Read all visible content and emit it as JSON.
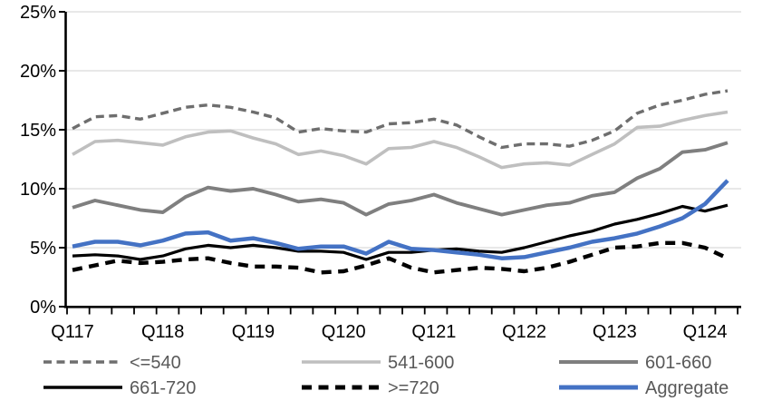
{
  "chart_data": {
    "type": "line",
    "title": "",
    "x_axis": {
      "tick_labels": [
        "Q117",
        "Q118",
        "Q119",
        "Q120",
        "Q121",
        "Q122",
        "Q123",
        "Q124"
      ],
      "categories": [
        "Q117",
        "Q217",
        "Q317",
        "Q417",
        "Q118",
        "Q218",
        "Q318",
        "Q418",
        "Q119",
        "Q219",
        "Q319",
        "Q419",
        "Q120",
        "Q220",
        "Q320",
        "Q420",
        "Q121",
        "Q221",
        "Q321",
        "Q421",
        "Q122",
        "Q222",
        "Q322",
        "Q422",
        "Q123",
        "Q223",
        "Q323",
        "Q423",
        "Q124",
        "Q224"
      ]
    },
    "y_axis": {
      "tick_labels": [
        "0%",
        "5%",
        "10%",
        "15%",
        "20%",
        "25%"
      ],
      "min": 0,
      "max": 25,
      "step": 5,
      "unit": "%"
    },
    "grid": "horizontal",
    "legend_position": "bottom",
    "colors": {
      "band_lt540": "#6e6e6e",
      "band_541_600": "#bfbfbf",
      "band_601_660": "#7f7f7f",
      "band_661_720": "#000000",
      "band_ge720": "#000000",
      "aggregate": "#4472c4",
      "gridline": "#d9d9d9",
      "axis": "#000000",
      "legend_text": "#595959"
    },
    "series": [
      {
        "name": "<=540",
        "color": "#6e6e6e",
        "line_style": "dashed",
        "values": [
          15.1,
          16.1,
          16.2,
          15.9,
          16.4,
          16.9,
          17.1,
          16.9,
          16.5,
          16.0,
          14.8,
          15.1,
          14.9,
          14.8,
          15.5,
          15.6,
          15.9,
          15.4,
          14.4,
          13.5,
          13.8,
          13.8,
          13.6,
          14.1,
          14.9,
          16.4,
          17.1,
          17.5,
          18.0,
          18.3
        ]
      },
      {
        "name": "541-600",
        "color": "#bfbfbf",
        "line_style": "solid",
        "values": [
          12.9,
          14.0,
          14.1,
          13.9,
          13.7,
          14.4,
          14.8,
          14.9,
          14.3,
          13.8,
          12.9,
          13.2,
          12.8,
          12.1,
          13.4,
          13.5,
          14.0,
          13.5,
          12.7,
          11.8,
          12.1,
          12.2,
          12.0,
          12.9,
          13.8,
          15.2,
          15.3,
          15.8,
          16.2,
          16.5
        ]
      },
      {
        "name": "601-660",
        "color": "#7f7f7f",
        "line_style": "solid",
        "values": [
          8.4,
          9.0,
          8.6,
          8.2,
          8.0,
          9.3,
          10.1,
          9.8,
          10.0,
          9.5,
          8.9,
          9.1,
          8.8,
          7.8,
          8.7,
          9.0,
          9.5,
          8.8,
          8.3,
          7.8,
          8.2,
          8.6,
          8.8,
          9.4,
          9.7,
          10.9,
          11.7,
          13.1,
          13.3,
          13.9
        ]
      },
      {
        "name": "661-720",
        "color": "#000000",
        "line_style": "solid",
        "values": [
          4.3,
          4.4,
          4.3,
          4.0,
          4.3,
          4.9,
          5.2,
          5.0,
          5.2,
          5.0,
          4.7,
          4.7,
          4.6,
          4.0,
          4.6,
          4.6,
          4.8,
          4.9,
          4.7,
          4.6,
          5.0,
          5.5,
          6.0,
          6.4,
          7.0,
          7.4,
          7.9,
          8.5,
          8.1,
          8.6
        ]
      },
      {
        "name": ">=720",
        "color": "#000000",
        "line_style": "dashed",
        "values": [
          3.1,
          3.5,
          3.9,
          3.7,
          3.8,
          4.0,
          4.1,
          3.7,
          3.4,
          3.4,
          3.3,
          2.9,
          3.0,
          3.5,
          4.1,
          3.3,
          2.9,
          3.1,
          3.3,
          3.2,
          3.0,
          3.3,
          3.8,
          4.4,
          5.0,
          5.1,
          5.4,
          5.4,
          5.0,
          4.1
        ]
      },
      {
        "name": "Aggregate",
        "color": "#4472c4",
        "line_style": "solid",
        "values": [
          5.1,
          5.5,
          5.5,
          5.2,
          5.6,
          6.2,
          6.3,
          5.6,
          5.8,
          5.4,
          4.9,
          5.1,
          5.1,
          4.5,
          5.5,
          4.9,
          4.8,
          4.6,
          4.4,
          4.1,
          4.2,
          4.6,
          5.0,
          5.5,
          5.8,
          6.2,
          6.8,
          7.5,
          8.7,
          10.7
        ]
      }
    ]
  }
}
